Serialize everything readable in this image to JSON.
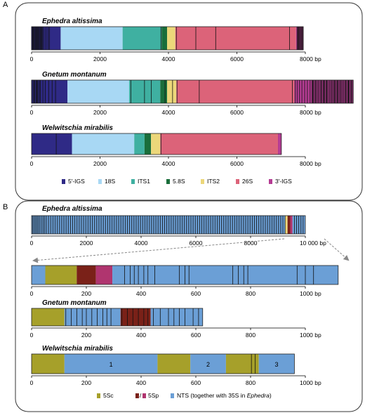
{
  "colors": {
    "5_IGS": "#2f2a86",
    "18S": "#a8d8f4",
    "ITS1": "#3fb0a1",
    "5_8S": "#1a6e3b",
    "ITS2": "#ecd77a",
    "26S": "#dc6379",
    "3_IGS": "#b53c93",
    "NTS": "#6b9fd6",
    "5Sc": "#a6a02a",
    "5Sp_red": "#7a2118",
    "5Sp_magenta": "#b0356f",
    "site": "#111111"
  },
  "panels": [
    {
      "letter": "A",
      "rows": [
        {
          "species": "Ephedra altissima",
          "unit": "8000 bp",
          "scale_max": 8000,
          "ticks": [
            0,
            2000,
            4000,
            6000
          ],
          "segments": [
            {
              "type": "5_IGS",
              "start": 0,
              "end": 850
            },
            {
              "type": "18S",
              "start": 850,
              "end": 2660
            },
            {
              "type": "ITS1",
              "start": 2660,
              "end": 3800
            },
            {
              "type": "5_8S",
              "start": 3800,
              "end": 3960
            },
            {
              "type": "ITS2",
              "start": 3960,
              "end": 4200
            },
            {
              "type": "26S",
              "start": 4200,
              "end": 7730
            },
            {
              "type": "3_IGS",
              "start": 7730,
              "end": 7940
            }
          ],
          "sites": [
            30,
            60,
            90,
            120,
            160,
            200,
            250,
            300,
            360,
            420,
            480,
            520,
            3780,
            4230,
            4800,
            5380,
            7540,
            7780,
            7820,
            7860,
            7890,
            7920
          ],
          "dense": [
            [
              0,
              320
            ],
            [
              7760,
              7940
            ]
          ]
        },
        {
          "species": "Gnetum montanum",
          "unit": "8000 bp",
          "scale_max": 8000,
          "ticks": [
            0,
            2000,
            4000,
            6000
          ],
          "segments": [
            {
              "type": "5_IGS",
              "start": 0,
              "end": 1050
            },
            {
              "type": "18S",
              "start": 1050,
              "end": 2850
            },
            {
              "type": "ITS1",
              "start": 2850,
              "end": 3760
            },
            {
              "type": "5_8S",
              "start": 3760,
              "end": 3960
            },
            {
              "type": "ITS2",
              "start": 3960,
              "end": 4230
            },
            {
              "type": "26S",
              "start": 4230,
              "end": 7680
            },
            {
              "type": "3_IGS",
              "start": 7680,
              "end": 9400
            }
          ],
          "sites": [
            80,
            160,
            260,
            330,
            400,
            500,
            600,
            700,
            2900,
            3300,
            3500,
            3900,
            4120,
            4250,
            4900,
            7620,
            7700,
            7760,
            7830,
            7900,
            7980,
            8060,
            8140,
            8220,
            8300,
            8380,
            8460,
            8540,
            8620,
            8700,
            8780,
            8860,
            8940,
            9020,
            9100,
            9180,
            9260,
            9340
          ],
          "dense": [
            [
              0,
              250
            ],
            [
              8200,
              9400
            ]
          ]
        },
        {
          "species": "Welwitschia mirabilis",
          "unit": "8000 bp",
          "scale_max": 8000,
          "ticks": [
            0,
            2000,
            4000,
            6000
          ],
          "segments": [
            {
              "type": "5_IGS",
              "start": 0,
              "end": 1180
            },
            {
              "type": "18S",
              "start": 1180,
              "end": 3000
            },
            {
              "type": "ITS1",
              "start": 3000,
              "end": 3300
            },
            {
              "type": "5_8S",
              "start": 3300,
              "end": 3490
            },
            {
              "type": "ITS2",
              "start": 3490,
              "end": 3760
            },
            {
              "type": "26S",
              "start": 3760,
              "end": 7200
            },
            {
              "type": "3_IGS",
              "start": 7200,
              "end": 7300
            }
          ],
          "sites": [
            720,
            3780
          ],
          "dense": []
        }
      ],
      "legend": [
        {
          "type": "5_IGS",
          "label": "5′-IGS"
        },
        {
          "type": "18S",
          "label": "18S"
        },
        {
          "type": "ITS1",
          "label": "ITS1"
        },
        {
          "type": "5_8S",
          "label": "5.8S"
        },
        {
          "type": "ITS2",
          "label": "ITS2"
        },
        {
          "type": "26S",
          "label": "26S"
        },
        {
          "type": "3_IGS",
          "label": "3′-IGS"
        }
      ]
    },
    {
      "letter": "B",
      "rows": [
        {
          "species": "Ephedra altissima",
          "unit": "10 000 bp",
          "scale_max": 10000,
          "ticks": [
            0,
            2000,
            4000,
            6000,
            8000
          ],
          "segments": [
            {
              "type": "NTS",
              "start": 0,
              "end": 9270
            },
            {
              "type": "ITS2",
              "start": 9270,
              "end": 9350
            },
            {
              "type": "5Sp_red",
              "start": 9350,
              "end": 9450
            },
            {
              "type": "5Sp_magenta",
              "start": 9450,
              "end": 9530
            },
            {
              "type": "NTS",
              "start": 9530,
              "end": 10000
            }
          ],
          "sites": [
            40,
            90,
            140,
            190,
            240,
            300,
            360,
            420,
            480,
            540,
            620,
            700,
            780,
            860,
            940,
            1020,
            1100,
            1180,
            1260,
            1340,
            1420,
            1500,
            1580,
            1660,
            1740,
            1820,
            1900,
            1980,
            2060,
            2140,
            2220,
            2300,
            2380,
            2460,
            2540,
            2620,
            2700,
            2780,
            2860,
            2940,
            3020,
            3100,
            3180,
            3260,
            3340,
            3420,
            3500,
            3580,
            3660,
            3740,
            3820,
            3900,
            3980,
            4060,
            4140,
            4220,
            4300,
            4380,
            4460,
            4540,
            4620,
            4700,
            4780,
            4860,
            4940,
            5020,
            5100,
            5180,
            5260,
            5340,
            5420,
            5500,
            5580,
            5660,
            5740,
            5820,
            5900,
            5980,
            6060,
            6140,
            6220,
            6300,
            6380,
            6460,
            6540,
            6620,
            6700,
            6780,
            6860,
            6940,
            7020,
            7100,
            7180,
            7260,
            7340,
            7420,
            7500,
            7580,
            7660,
            7740,
            7820,
            7900,
            7980,
            8060,
            8140,
            8220,
            8300,
            8380,
            8460,
            8540,
            8620,
            8700,
            8780,
            8860,
            8940,
            9020,
            9100,
            9180,
            9260,
            9600,
            9680,
            9760,
            9840,
            9920
          ],
          "dense": []
        },
        {
          "species": "",
          "unit": "1000 bp",
          "scale_max": 1000,
          "ticks": [
            0,
            200,
            400,
            600,
            800
          ],
          "segments": [
            {
              "type": "NTS",
              "start": 0,
              "end": 50
            },
            {
              "type": "5Sc",
              "start": 50,
              "end": 165
            },
            {
              "type": "5Sp_red",
              "start": 165,
              "end": 235
            },
            {
              "type": "5Sp_magenta",
              "start": 235,
              "end": 295
            },
            {
              "type": "NTS",
              "start": 295,
              "end": 1120
            }
          ],
          "sites": [
            340,
            360,
            375,
            390,
            410,
            425,
            450,
            540,
            560,
            575,
            735,
            755,
            775,
            790,
            970,
            1000,
            1030
          ],
          "dense": []
        },
        {
          "species": "Gnetum montanum",
          "unit": "1000 bp",
          "scale_max": 1000,
          "ticks": [
            0,
            200,
            400,
            600,
            800
          ],
          "segments": [
            {
              "type": "5Sc",
              "start": 0,
              "end": 120
            },
            {
              "type": "NTS",
              "start": 120,
              "end": 325
            },
            {
              "type": "5Sp_red",
              "start": 325,
              "end": 435
            },
            {
              "type": "NTS",
              "start": 435,
              "end": 625
            }
          ],
          "sites": [
            125,
            145,
            165,
            185,
            200,
            220,
            240,
            260,
            275,
            290,
            330,
            350,
            370,
            390,
            410,
            425,
            445,
            470,
            500,
            520,
            540,
            560,
            590,
            610
          ],
          "dense": []
        },
        {
          "species": "Welwitschia mirabilis",
          "unit": "1000 bp",
          "scale_max": 1000,
          "ticks": [
            0,
            200,
            400,
            600,
            800
          ],
          "segments": [
            {
              "type": "5Sc",
              "start": 0,
              "end": 120
            },
            {
              "type": "NTS",
              "start": 120,
              "end": 460,
              "label": "1"
            },
            {
              "type": "5Sc",
              "start": 460,
              "end": 580
            },
            {
              "type": "NTS",
              "start": 580,
              "end": 710,
              "label": "2"
            },
            {
              "type": "5Sc",
              "start": 710,
              "end": 830
            },
            {
              "type": "NTS",
              "start": 830,
              "end": 960,
              "label": "3"
            }
          ],
          "sites": [
            803,
            817
          ],
          "dense": []
        }
      ],
      "legend": [
        {
          "type": "5Sc",
          "label": "5Sc"
        },
        {
          "type": "5Sp",
          "label": "5Sp"
        },
        {
          "type": "NTS",
          "label": "NTS (together with 35S in ",
          "italic": "Ephedra",
          "tail": ")"
        }
      ]
    }
  ]
}
